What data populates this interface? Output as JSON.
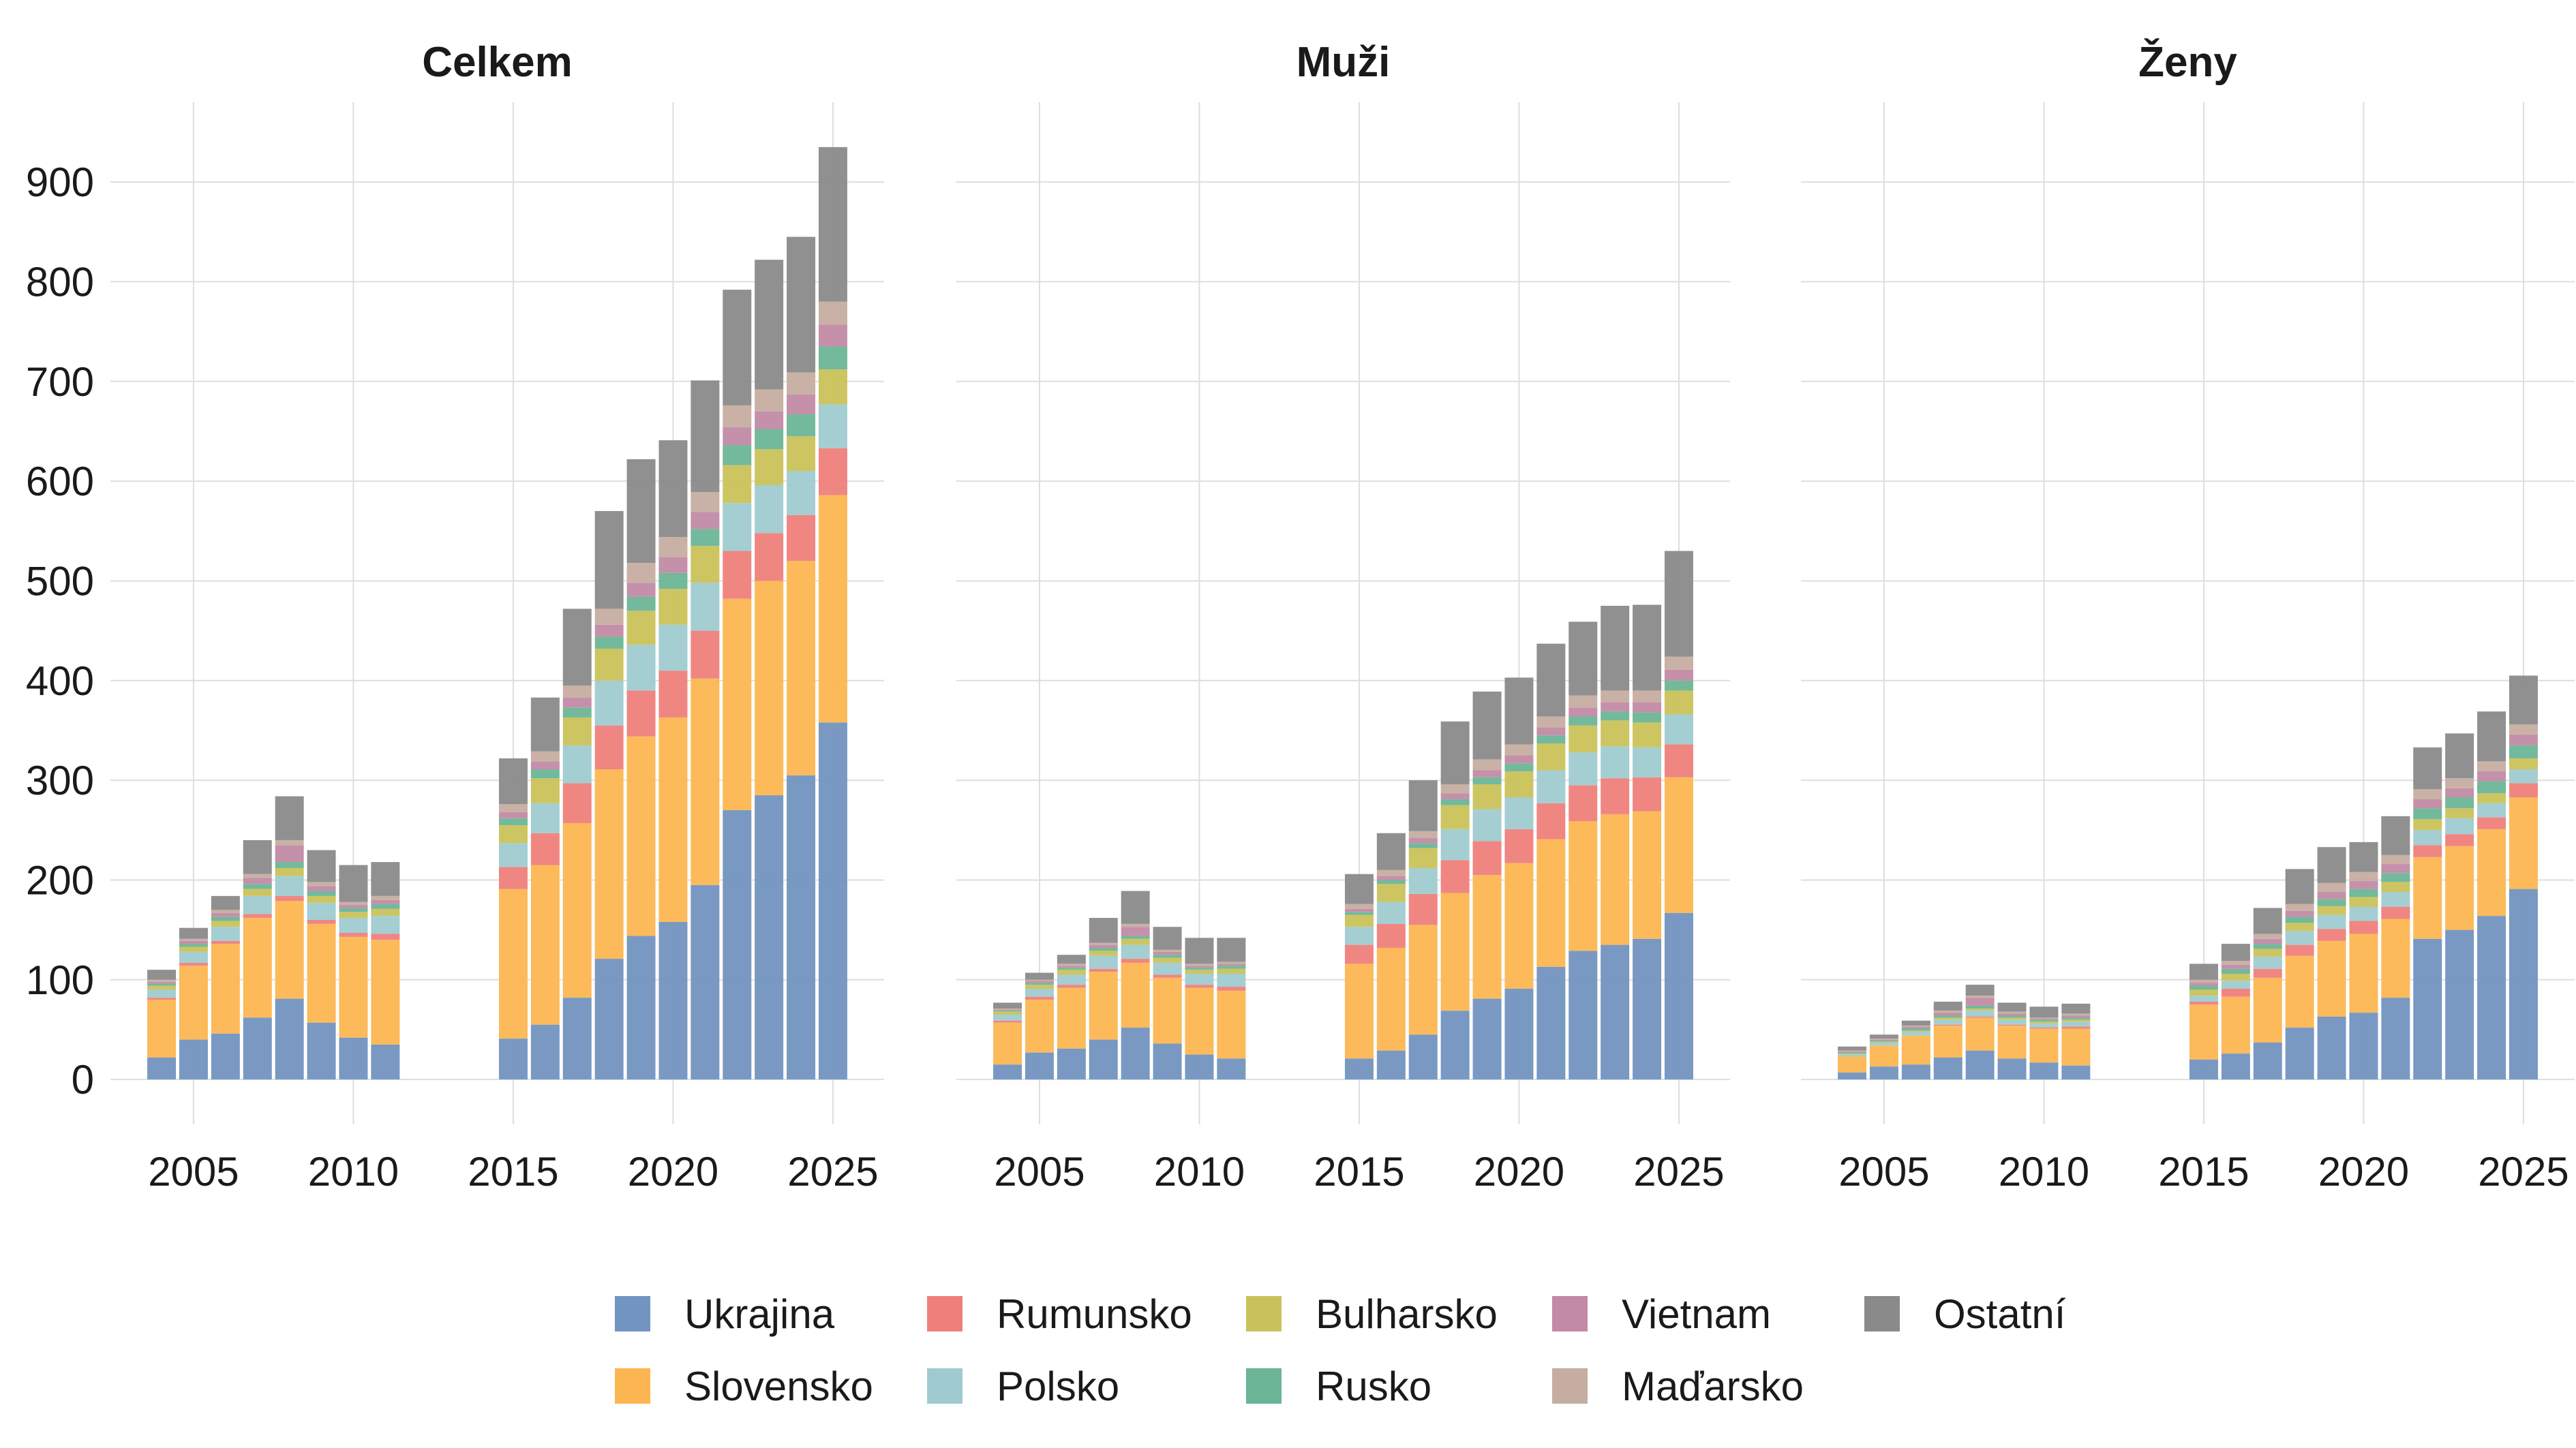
{
  "chart_data": {
    "type": "bar",
    "stacked": true,
    "facets": [
      "Celkem",
      "Muži",
      "Ženy"
    ],
    "xticks": [
      2005,
      2010,
      2015,
      2020,
      2025
    ],
    "yticks": [
      0,
      100,
      200,
      300,
      400,
      500,
      600,
      700,
      800,
      900
    ],
    "xlim": [
      2002.4,
      2026.6
    ],
    "ylim": [
      -45,
      980
    ],
    "grid": true,
    "legend_position": "bottom",
    "x": [
      2004,
      2005,
      2006,
      2007,
      2008,
      2009,
      2010,
      2011,
      2015,
      2016,
      2017,
      2018,
      2019,
      2020,
      2021,
      2022,
      2023,
      2024,
      2025
    ],
    "series": [
      {
        "name": "Ukrajina",
        "color": "#7294C0"
      },
      {
        "name": "Slovensko",
        "color": "#FCB651"
      },
      {
        "name": "Rumunsko",
        "color": "#EF7F7B"
      },
      {
        "name": "Polsko",
        "color": "#9FCBD0"
      },
      {
        "name": "Bulharsko",
        "color": "#C9C25A"
      },
      {
        "name": "Rusko",
        "color": "#6BB596"
      },
      {
        "name": "Vietnam",
        "color": "#C28AA5"
      },
      {
        "name": "Maďarsko",
        "color": "#C6ADA1"
      },
      {
        "name": "Ostatní",
        "color": "#8A8A8A"
      }
    ],
    "panels": [
      {
        "title": "Celkem",
        "values": {
          "Ukrajina": [
            22,
            40,
            46,
            62,
            81,
            57,
            42,
            35,
            41,
            55,
            82,
            121,
            144,
            158,
            195,
            270,
            285,
            305,
            358
          ],
          "Slovensko": [
            58,
            74,
            90,
            100,
            98,
            99,
            101,
            105,
            150,
            160,
            175,
            190,
            200,
            205,
            207,
            212,
            215,
            215,
            228
          ],
          "Rumunsko": [
            2,
            3,
            3,
            4,
            5,
            4,
            4,
            6,
            22,
            32,
            40,
            44,
            46,
            47,
            48,
            48,
            48,
            46,
            47
          ],
          "Polsko": [
            8,
            11,
            14,
            18,
            20,
            17,
            15,
            18,
            24,
            30,
            38,
            45,
            46,
            46,
            48,
            48,
            48,
            44,
            44
          ],
          "Bulharsko": [
            4,
            5,
            6,
            7,
            8,
            7,
            6,
            7,
            18,
            25,
            28,
            32,
            34,
            36,
            37,
            38,
            36,
            35,
            35
          ],
          "Rusko": [
            2,
            3,
            4,
            5,
            6,
            5,
            4,
            5,
            7,
            9,
            10,
            12,
            14,
            16,
            17,
            20,
            20,
            22,
            23
          ],
          "Vietnam": [
            2,
            3,
            4,
            6,
            17,
            5,
            3,
            4,
            6,
            8,
            10,
            12,
            14,
            16,
            17,
            18,
            18,
            20,
            22
          ],
          "Maďarsko": [
            2,
            2,
            3,
            4,
            5,
            4,
            3,
            4,
            8,
            10,
            12,
            16,
            20,
            20,
            20,
            22,
            22,
            22,
            23
          ],
          "Ostatní": [
            10,
            11,
            14,
            34,
            44,
            32,
            37,
            34,
            46,
            54,
            77,
            98,
            104,
            97,
            112,
            116,
            130,
            136,
            155
          ]
        }
      },
      {
        "title": "Muži",
        "values": {
          "Ukrajina": [
            15,
            27,
            31,
            40,
            52,
            36,
            25,
            21,
            21,
            29,
            45,
            69,
            81,
            91,
            113,
            129,
            135,
            141,
            167
          ],
          "Slovensko": [
            42,
            53,
            61,
            68,
            65,
            66,
            67,
            68,
            95,
            103,
            110,
            118,
            124,
            126,
            128,
            130,
            131,
            128,
            136
          ],
          "Rumunsko": [
            2,
            3,
            3,
            3,
            4,
            3,
            3,
            4,
            19,
            24,
            31,
            33,
            34,
            34,
            36,
            36,
            36,
            34,
            33
          ],
          "Polsko": [
            6,
            8,
            10,
            13,
            14,
            12,
            11,
            13,
            18,
            22,
            26,
            31,
            32,
            32,
            33,
            33,
            32,
            30,
            30
          ],
          "Bulharsko": [
            3,
            4,
            5,
            5,
            6,
            5,
            4,
            5,
            12,
            18,
            20,
            24,
            25,
            26,
            27,
            27,
            26,
            25,
            24
          ],
          "Rusko": [
            1,
            2,
            2,
            3,
            3,
            3,
            2,
            3,
            3,
            4,
            5,
            6,
            7,
            8,
            8,
            9,
            9,
            10,
            10
          ],
          "Vietnam": [
            1,
            2,
            2,
            3,
            9,
            3,
            2,
            2,
            3,
            4,
            5,
            6,
            7,
            8,
            8,
            9,
            9,
            10,
            11
          ],
          "Maďarsko": [
            1,
            1,
            2,
            2,
            3,
            2,
            2,
            2,
            5,
            6,
            7,
            9,
            11,
            11,
            11,
            12,
            12,
            12,
            13
          ],
          "Ostatní": [
            6,
            7,
            9,
            25,
            33,
            23,
            26,
            24,
            30,
            37,
            51,
            63,
            68,
            67,
            73,
            74,
            85,
            86,
            106
          ]
        }
      },
      {
        "title": "Ženy",
        "values": {
          "Ukrajina": [
            7,
            13,
            15,
            22,
            29,
            21,
            17,
            14,
            20,
            26,
            37,
            52,
            63,
            67,
            82,
            141,
            150,
            164,
            191
          ],
          "Slovensko": [
            16,
            21,
            29,
            32,
            33,
            33,
            34,
            37,
            55,
            57,
            65,
            72,
            76,
            79,
            79,
            82,
            84,
            87,
            92
          ],
          "Rumunsko": [
            0,
            0,
            0,
            1,
            1,
            1,
            1,
            2,
            3,
            8,
            9,
            11,
            12,
            13,
            12,
            12,
            12,
            12,
            14
          ],
          "Polsko": [
            2,
            3,
            4,
            5,
            6,
            5,
            4,
            5,
            6,
            8,
            12,
            14,
            14,
            14,
            15,
            15,
            16,
            14,
            14
          ],
          "Bulharsko": [
            1,
            1,
            1,
            2,
            2,
            2,
            2,
            2,
            6,
            7,
            8,
            8,
            9,
            10,
            10,
            11,
            10,
            10,
            11
          ],
          "Rusko": [
            1,
            1,
            2,
            2,
            3,
            2,
            2,
            2,
            4,
            5,
            5,
            6,
            7,
            8,
            9,
            11,
            11,
            12,
            13
          ],
          "Vietnam": [
            1,
            1,
            2,
            3,
            8,
            2,
            1,
            2,
            3,
            4,
            5,
            6,
            7,
            8,
            9,
            9,
            9,
            10,
            11
          ],
          "Maďarsko": [
            1,
            1,
            1,
            2,
            2,
            2,
            1,
            2,
            3,
            4,
            5,
            7,
            9,
            9,
            9,
            10,
            10,
            10,
            10
          ],
          "Ostatní": [
            4,
            4,
            5,
            9,
            11,
            9,
            11,
            10,
            16,
            17,
            26,
            35,
            36,
            30,
            39,
            42,
            45,
            50,
            49
          ]
        }
      }
    ]
  }
}
